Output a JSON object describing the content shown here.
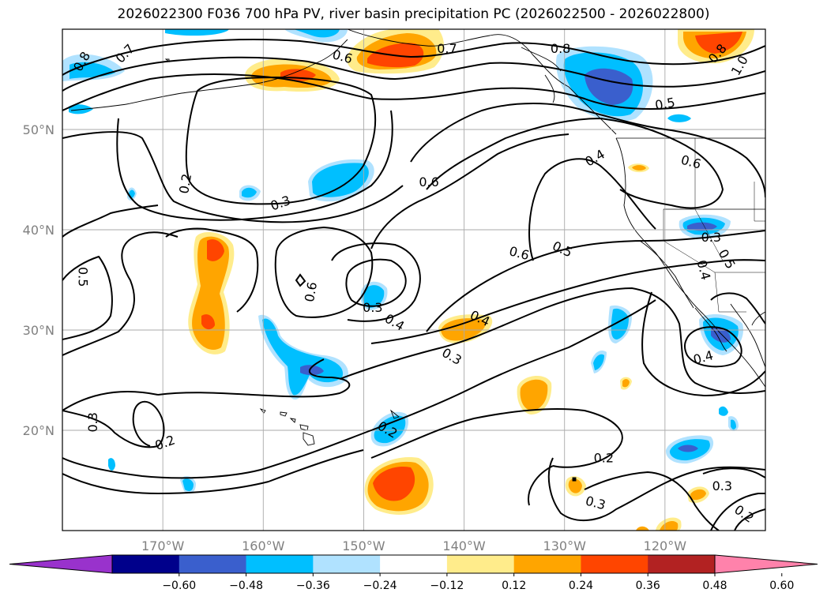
{
  "title": "2026022300 F036 700 hPa PV, river basin precipitation PC (2026022500 - 2026022800)",
  "map": {
    "projection": "PlateCarree",
    "lon_range": [
      -180,
      -110
    ],
    "lat_range": [
      10,
      60
    ],
    "gridlines": true,
    "lat_ticks": [
      {
        "value": 50,
        "label": "50°N"
      },
      {
        "value": 40,
        "label": "40°N"
      },
      {
        "value": 30,
        "label": "30°N"
      },
      {
        "value": 20,
        "label": "20°N"
      }
    ],
    "lon_ticks": [
      {
        "value": -170,
        "label": "170°W"
      },
      {
        "value": -160,
        "label": "160°W"
      },
      {
        "value": -150,
        "label": "150°W"
      },
      {
        "value": -140,
        "label": "140°W"
      },
      {
        "value": -130,
        "label": "130°W"
      },
      {
        "value": -120,
        "label": "120°W"
      }
    ]
  },
  "contour_labels": [
    {
      "text": "0.8",
      "lon": -178.1,
      "lat": 56.8,
      "rot": -60
    },
    {
      "text": "0.7",
      "lon": -173.8,
      "lat": 57.6,
      "rot": -45
    },
    {
      "text": "0.6",
      "lon": -152.1,
      "lat": 57.3,
      "rot": 15
    },
    {
      "text": "0.7",
      "lon": -141.7,
      "lat": 58.1,
      "rot": 0
    },
    {
      "text": "0.8",
      "lon": -130.4,
      "lat": 58.1,
      "rot": 0
    },
    {
      "text": "0.5",
      "lon": -120.0,
      "lat": 52.6,
      "rot": -10
    },
    {
      "text": "0.8",
      "lon": -114.8,
      "lat": 57.6,
      "rot": -50
    },
    {
      "text": "1.0",
      "lon": -112.6,
      "lat": 56.4,
      "rot": -60
    },
    {
      "text": "0.4",
      "lon": -127.0,
      "lat": 47.2,
      "rot": -30
    },
    {
      "text": "0.6",
      "lon": -117.4,
      "lat": 46.8,
      "rot": 15
    },
    {
      "text": "0.2",
      "lon": -167.8,
      "lat": 44.6,
      "rot": -80
    },
    {
      "text": "0.3",
      "lon": -158.3,
      "lat": 42.7,
      "rot": -20
    },
    {
      "text": "0.6",
      "lon": -143.5,
      "lat": 44.8,
      "rot": 0
    },
    {
      "text": "0.3",
      "lon": -115.4,
      "lat": 39.3,
      "rot": 0
    },
    {
      "text": "0.5",
      "lon": -113.8,
      "lat": 37.1,
      "rot": 60
    },
    {
      "text": "0.4",
      "lon": -116.1,
      "lat": 36.0,
      "rot": 75
    },
    {
      "text": "0.6",
      "lon": -134.5,
      "lat": 37.7,
      "rot": 15
    },
    {
      "text": "0.5",
      "lon": -130.2,
      "lat": 38.1,
      "rot": 25
    },
    {
      "text": "0.5",
      "lon": -177.9,
      "lat": 35.3,
      "rot": 90
    },
    {
      "text": "0.6",
      "lon": -155.3,
      "lat": 33.8,
      "rot": -80
    },
    {
      "text": "0.3",
      "lon": -149.1,
      "lat": 32.3,
      "rot": 0
    },
    {
      "text": "0.4",
      "lon": -146.9,
      "lat": 30.8,
      "rot": 30
    },
    {
      "text": "0.4",
      "lon": -138.4,
      "lat": 31.2,
      "rot": 25
    },
    {
      "text": "0.3",
      "lon": -141.2,
      "lat": 27.4,
      "rot": 30
    },
    {
      "text": "0.4",
      "lon": -116.2,
      "lat": 27.3,
      "rot": -15
    },
    {
      "text": "0.3",
      "lon": -177.0,
      "lat": 20.8,
      "rot": -90
    },
    {
      "text": "0.2",
      "lon": -169.8,
      "lat": 18.8,
      "rot": -20
    },
    {
      "text": "0.2",
      "lon": -147.6,
      "lat": 20.1,
      "rot": 30
    },
    {
      "text": "0.2",
      "lon": -126.1,
      "lat": 17.3,
      "rot": 0
    },
    {
      "text": "0.3",
      "lon": -126.9,
      "lat": 12.8,
      "rot": 15
    },
    {
      "text": "0.3",
      "lon": -114.3,
      "lat": 14.5,
      "rot": 0
    },
    {
      "text": "0.2",
      "lon": -112.1,
      "lat": 11.7,
      "rot": 35
    }
  ],
  "colorbar": {
    "extend": "both",
    "ticks": [
      "−0.60",
      "−0.48",
      "−0.36",
      "−0.24",
      "−0.12",
      "0.12",
      "0.24",
      "0.36",
      "0.48",
      "0.60"
    ],
    "colors": [
      "#9932cc",
      "#00008b",
      "#3a5fcd",
      "#00bfff",
      "#b0e2ff",
      "#ffffff",
      "#ffec8b",
      "#ffa500",
      "#ff4500",
      "#b22222",
      "#ff82ab"
    ]
  }
}
